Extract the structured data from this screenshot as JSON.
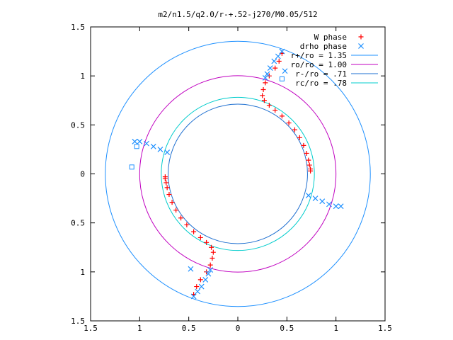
{
  "chart_data": {
    "type": "scatter",
    "title": "m2/n1.5/q2.0/r-+.52-j270/M0.05/512",
    "xlabel": "",
    "ylabel": "",
    "xlim": [
      -1.5,
      1.5
    ],
    "ylim": [
      -1.5,
      1.5
    ],
    "x_ticks": [
      -1.5,
      -1,
      -0.5,
      0,
      0.5,
      1,
      1.5
    ],
    "y_ticks": [
      -1.5,
      -1,
      -0.5,
      0,
      0.5,
      1,
      1.5
    ],
    "x_tick_labels": [
      "1.5",
      "1",
      "0.5",
      "0",
      "0.5",
      "1",
      "1.5"
    ],
    "y_tick_labels": [
      "1.5",
      "1",
      "0.5",
      "0",
      "0.5",
      "1",
      "1.5"
    ],
    "grid": false,
    "legend_position": "top-right",
    "colors": {
      "w_phase": "#ff0000",
      "drho_phase": "#1e90ff",
      "r_plus": "#1e90ff",
      "r0": "#c000c0",
      "r_minus": "#1e6fd0",
      "rc": "#00cccc",
      "open_square": "#1e90ff"
    },
    "legend": [
      {
        "label": "W phase",
        "marker": "plus"
      },
      {
        "label": "drho phase",
        "marker": "cross"
      },
      {
        "label": "r+/ro = 1.35",
        "marker": "line"
      },
      {
        "label": "ro/ro = 1.00",
        "marker": "line"
      },
      {
        "label": "r-/ro = .71",
        "marker": "line"
      },
      {
        "label": "rc/ro = .78",
        "marker": "line"
      }
    ],
    "circles": [
      {
        "radius": 1.35,
        "color_key": "r_plus"
      },
      {
        "radius": 1.0,
        "color_key": "r0"
      },
      {
        "radius": 0.71,
        "color_key": "r_minus"
      },
      {
        "radius": 0.78,
        "color_key": "rc"
      }
    ],
    "series": [
      {
        "name": "W phase",
        "marker": "plus",
        "x": [
          0.45,
          0.42,
          0.38,
          0.32,
          0.28,
          0.26,
          0.25,
          0.27,
          0.32,
          0.38,
          0.45,
          0.52,
          0.58,
          0.63,
          0.67,
          0.7,
          0.72,
          0.73,
          0.74,
          0.74,
          -0.45,
          -0.42,
          -0.38,
          -0.32,
          -0.28,
          -0.26,
          -0.25,
          -0.27,
          -0.32,
          -0.38,
          -0.45,
          -0.52,
          -0.58,
          -0.63,
          -0.67,
          -0.7,
          -0.72,
          -0.73,
          -0.74,
          -0.74
        ],
        "y": [
          1.23,
          1.15,
          1.08,
          1.0,
          0.93,
          0.86,
          0.8,
          0.75,
          0.7,
          0.65,
          0.59,
          0.52,
          0.45,
          0.37,
          0.29,
          0.21,
          0.14,
          0.09,
          0.05,
          0.03,
          -1.23,
          -1.15,
          -1.08,
          -1.0,
          -0.93,
          -0.86,
          -0.8,
          -0.75,
          -0.7,
          -0.65,
          -0.59,
          -0.52,
          -0.45,
          -0.37,
          -0.29,
          -0.21,
          -0.14,
          -0.09,
          -0.05,
          -0.03
        ]
      },
      {
        "name": "drho phase",
        "marker": "cross",
        "x": [
          0.45,
          0.41,
          0.37,
          0.33,
          0.3,
          0.28,
          -1.05,
          -1.0,
          -0.93,
          -0.86,
          -0.79,
          -0.72,
          -0.45,
          -0.41,
          -0.37,
          -0.33,
          -0.3,
          -0.28,
          1.05,
          1.0,
          0.93,
          0.86,
          0.79,
          0.72,
          0.48,
          -0.48
        ],
        "y": [
          1.25,
          1.2,
          1.15,
          1.08,
          1.02,
          0.98,
          0.33,
          0.33,
          0.31,
          0.28,
          0.25,
          0.22,
          -1.25,
          -1.2,
          -1.15,
          -1.08,
          -1.02,
          -0.98,
          -0.33,
          -0.33,
          -0.31,
          -0.28,
          -0.25,
          -0.22,
          1.05,
          -0.97
        ]
      },
      {
        "marker": "square",
        "x": [
          0.45,
          -1.08,
          -1.03
        ],
        "y": [
          0.97,
          0.07,
          0.28
        ]
      }
    ]
  }
}
